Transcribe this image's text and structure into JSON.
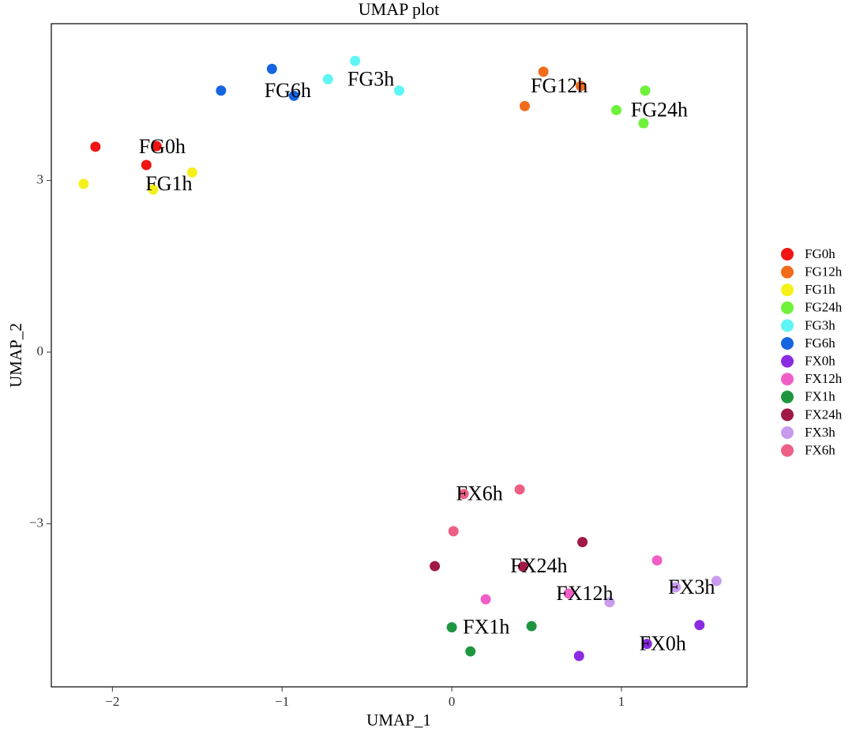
{
  "chart_data": {
    "type": "scatter",
    "title": "UMAP plot",
    "x_label": "UMAP_1",
    "y_label": "UMAP_2",
    "xlim": [
      -2.36,
      1.74
    ],
    "ylim": [
      -5.85,
      5.74
    ],
    "xticks": [
      {
        "value": -2,
        "label": "−2"
      },
      {
        "value": -1,
        "label": "−1"
      },
      0,
      1
    ],
    "yticks": [
      {
        "value": -3,
        "label": "−3"
      },
      0,
      3
    ],
    "legend": "right",
    "cluster_labels": true,
    "series": [
      {
        "name": "FG0h",
        "color": "#f01414",
        "x": [
          -2.1,
          -1.8,
          -1.74
        ],
        "values": [
          3.59,
          3.27,
          3.6
        ]
      },
      {
        "name": "FG12h",
        "color": "#f26b1b",
        "x": [
          0.54,
          0.76,
          0.43
        ],
        "values": [
          4.9,
          4.65,
          4.3
        ]
      },
      {
        "name": "FG1h",
        "color": "#f5f01a",
        "x": [
          -2.17,
          -1.53,
          -1.76
        ],
        "values": [
          2.94,
          3.14,
          2.84
        ]
      },
      {
        "name": "FG24h",
        "color": "#6ff23a",
        "x": [
          1.14,
          0.97,
          1.13
        ],
        "values": [
          4.57,
          4.23,
          4.0
        ]
      },
      {
        "name": "FG3h",
        "color": "#5ef5f5",
        "x": [
          -0.57,
          -0.73,
          -0.31
        ],
        "values": [
          5.09,
          4.77,
          4.57
        ]
      },
      {
        "name": "FG6h",
        "color": "#1565e0",
        "x": [
          -1.36,
          -1.06,
          -0.93
        ],
        "values": [
          4.57,
          4.95,
          4.48
        ]
      },
      {
        "name": "FX0h",
        "color": "#8a2be2",
        "x": [
          1.46,
          1.15,
          0.75
        ],
        "values": [
          -4.77,
          -5.1,
          -5.31
        ]
      },
      {
        "name": "FX12h",
        "color": "#f25ec8",
        "x": [
          1.21,
          0.69,
          0.2
        ],
        "values": [
          -3.64,
          -4.22,
          -4.32
        ]
      },
      {
        "name": "FX1h",
        "color": "#1e9640",
        "x": [
          0.0,
          0.47,
          0.11
        ],
        "values": [
          -4.81,
          -4.79,
          -5.23
        ]
      },
      {
        "name": "FX24h",
        "color": "#a01845",
        "x": [
          -0.1,
          0.77,
          0.42
        ],
        "values": [
          -3.74,
          -3.32,
          -3.75
        ]
      },
      {
        "name": "FX3h",
        "color": "#c89bef",
        "x": [
          1.56,
          0.93,
          1.32
        ],
        "values": [
          -4.0,
          -4.37,
          -4.11
        ]
      },
      {
        "name": "FX6h",
        "color": "#ee5f85",
        "x": [
          0.07,
          0.4,
          0.01
        ],
        "values": [
          -2.48,
          -2.4,
          -3.13
        ]
      }
    ]
  }
}
